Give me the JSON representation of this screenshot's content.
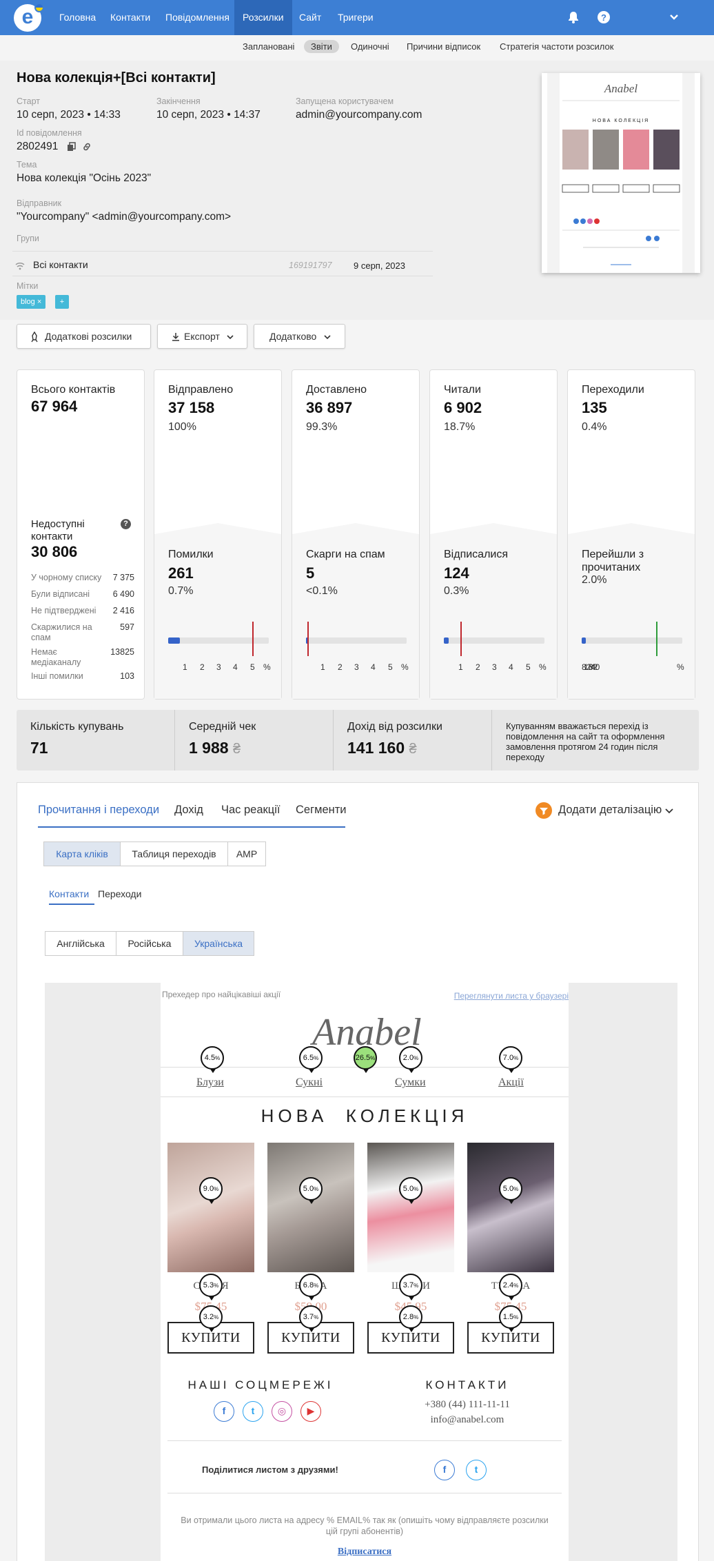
{
  "nav": {
    "items": [
      "Головна",
      "Контакти",
      "Повідомлення",
      "Розсилки",
      "Сайт",
      "Тригери"
    ],
    "active": "Розсилки"
  },
  "subnav": [
    "Заплановані",
    "Звіти",
    "Одиночні",
    "Причини відписок",
    "Стратегія частоти розсилок"
  ],
  "campaign": {
    "title": "Нова колекція+[Всі контакти]",
    "start_label": "Старт",
    "start": "10 серп, 2023 • 14:33",
    "end_label": "Закінчення",
    "end": "10 серп, 2023 • 14:37",
    "user_label": "Запущена користувачем",
    "user": "admin@yourcompany.com",
    "id_label": "Id повідомлення",
    "id": "2802491",
    "subject_label": "Тема",
    "subject": "Нова колекція \"Осінь 2023\"",
    "sender_label": "Відправник",
    "sender": "\"Yourcompany\" <admin@yourcompany.com>",
    "groups_label": "Групи",
    "group_name": "Всі контакти",
    "group_id": "169191797",
    "group_date": "9 серп, 2023",
    "tags_label": "Мітки",
    "tag": "blog",
    "tag_remove": "×",
    "tag_add": "+"
  },
  "actions": {
    "more_mailings": "Додаткові розсилки",
    "export": "Експорт",
    "more": "Додатково"
  },
  "stats": {
    "total": {
      "label": "Всього контактів",
      "value": "67 964"
    },
    "unavailable": {
      "label": "Недоступні контакти",
      "value": "30 806",
      "help": "?",
      "rows": [
        {
          "label": "У чорному списку",
          "value": "7 375"
        },
        {
          "label": "Були відписані",
          "value": "6 490"
        },
        {
          "label": "Не підтверджені",
          "value": "2 416"
        },
        {
          "label": "Скаржилися на спам",
          "value": "597"
        },
        {
          "label": "Немає медіаканалу",
          "value": "13825"
        },
        {
          "label": "Інші помилки",
          "value": "103"
        }
      ]
    },
    "cards": [
      {
        "label": "Відправлено",
        "value": "37 158",
        "pct": "100%",
        "sub_label": "Помилки",
        "sub_value": "261",
        "sub_pct": "0.7%",
        "fill": 0.7,
        "target": 5,
        "max": 6,
        "marker_color": "#c0272d",
        "ticks": [
          "1",
          "2",
          "3",
          "4",
          "5",
          "%"
        ]
      },
      {
        "label": "Доставлено",
        "value": "36 897",
        "pct": "99.3%",
        "sub_label": "Скарги на спам",
        "sub_value": "5",
        "sub_pct": "<0.1%",
        "fill": 0.05,
        "target": 0.1,
        "max": 6,
        "marker_color": "#c0272d",
        "ticks": [
          "1",
          "2",
          "3",
          "4",
          "5",
          "%"
        ]
      },
      {
        "label": "Читали",
        "value": "6 902",
        "pct": "18.7%",
        "sub_label": "Відписалися",
        "sub_value": "124",
        "sub_pct": "0.3%",
        "fill": 0.3,
        "target": 1,
        "max": 6,
        "marker_color": "#c0272d",
        "ticks": [
          "1",
          "2",
          "3",
          "4",
          "5",
          "%"
        ]
      },
      {
        "label": "Переходили",
        "value": "135",
        "pct": "0.4%",
        "sub_label": "Перейшли з прочитаних",
        "sub_value": "",
        "sub_pct": "2.0%",
        "fill": 2.0,
        "target": 34,
        "max": 46,
        "marker_color": "#2e9c3a",
        "ticks": [
          "8",
          "16",
          "24",
          "32",
          "40",
          "%"
        ]
      }
    ]
  },
  "revenue": {
    "purchases_label": "Кількість купувань",
    "purchases": "71",
    "avg_label": "Середній чек",
    "avg": "1 988",
    "income_label": "Дохід від розсилки",
    "income": "141 160",
    "currency": "₴",
    "note": "Купуванням вважається перехід із повідомлення на сайт та оформлення замовлення протягом 24 годин після переходу"
  },
  "tabs": [
    "Прочитання і переходи",
    "Дохід",
    "Час реакції",
    "Сегменти"
  ],
  "add_detail": "Додати деталізацію",
  "views": [
    "Карта кліків",
    "Таблиця переходів",
    "AMP"
  ],
  "subtabs": [
    "Контакти",
    "Переходи"
  ],
  "languages": [
    "Англійська",
    "Російська",
    "Українська"
  ],
  "email": {
    "preheader": "Прехедер про найцікавіші акції",
    "browser_link": "Переглянути листа у браузері",
    "brand": "Anabel",
    "menu": [
      "Блузи",
      "Сукні",
      "Сумки",
      "Акції"
    ],
    "menu_clicks": [
      "4.5",
      "6.5",
      "2.0",
      "7.0"
    ],
    "logo_click": "26.5",
    "headline": "НОВА  КОЛЕКЦІЯ",
    "products": [
      {
        "name": "СУКНЯ",
        "price": "$75.45",
        "img": "9.0",
        "nclick": "5.3",
        "pclick": "3.2"
      },
      {
        "name": "БЛУЗА",
        "price": "$59.00",
        "img": "5.0",
        "nclick": "6.8",
        "pclick": "3.7"
      },
      {
        "name": "ШТАНИ",
        "price": "$45.95",
        "img": "5.0",
        "nclick": "3.7",
        "pclick": "2.8"
      },
      {
        "name": "ТУНІКА",
        "price": "$75.45",
        "img": "5.0",
        "nclick": "2.4",
        "pclick": "1.5"
      }
    ],
    "buy": "КУПИТИ",
    "social_title": "НАШІ СОЦМЕРЕЖІ",
    "contacts_title": "КОНТАКТИ",
    "phone": "+380 (44) 111-11-11",
    "email": "info@anabel.com",
    "share": "Поділитися листом з друзями!",
    "footer": "Ви отримали цього листа на адресу % EMAIL% так як (опишіть чому відправляєте розсилки цій групі абонентів)",
    "unsubscribe": "Відписатися",
    "pct_sign": "%"
  },
  "colors": {
    "brand": "#3d7fd4",
    "accent": "#3563c9",
    "red": "#c0272d",
    "green": "#2e9c3a",
    "orange": "#f08a24"
  }
}
